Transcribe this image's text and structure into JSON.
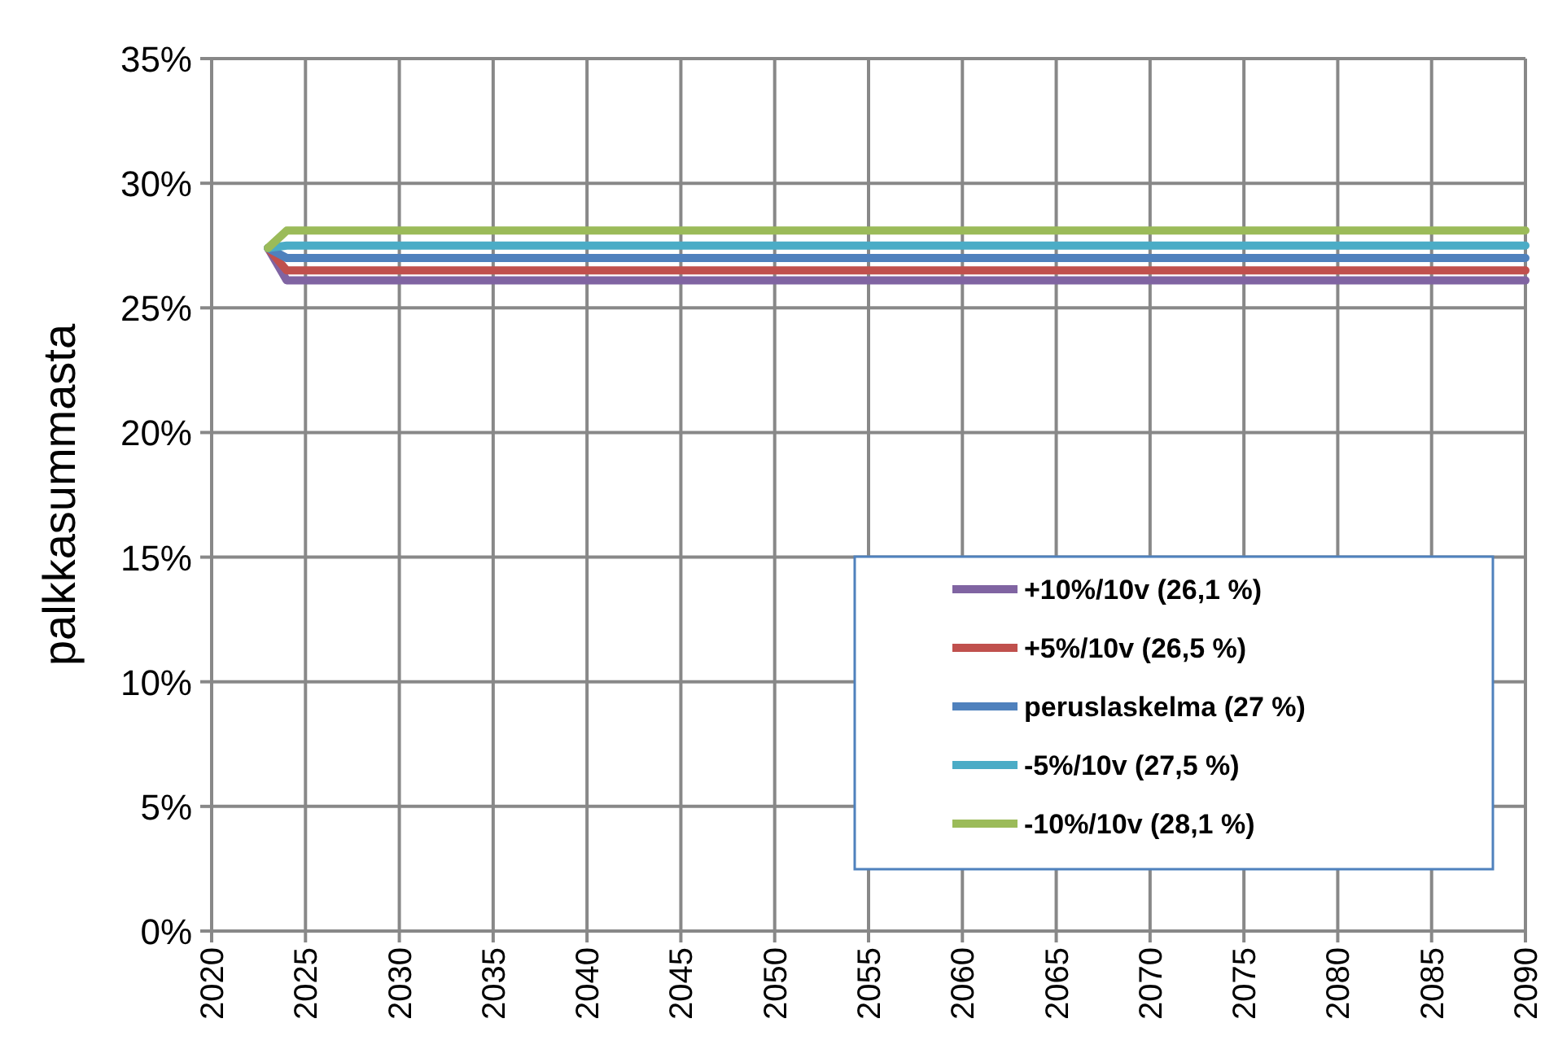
{
  "chart_data": {
    "type": "line",
    "ylabel": "palkkasummasta",
    "x": [
      2023,
      2024,
      2090
    ],
    "series": [
      {
        "name": "+10%/10v (26,1 %)",
        "color": "#8064a2",
        "values": [
          27.4,
          26.1,
          26.1
        ]
      },
      {
        "name": "+5%/10v (26,5 %)",
        "color": "#c0504d",
        "values": [
          27.4,
          26.5,
          26.5
        ]
      },
      {
        "name": "peruslaskelma (27 %)",
        "color": "#4f81bd",
        "values": [
          27.4,
          27,
          27
        ]
      },
      {
        "name": "-5%/10v (27,5 %)",
        "color": "#4bacc6",
        "values": [
          27.4,
          27.5,
          27.5
        ]
      },
      {
        "name": "-10%/10v (28,1 %)",
        "color": "#9bbb59",
        "values": [
          27.4,
          28.1,
          28.1
        ]
      }
    ],
    "xlim": [
      2020,
      2090
    ],
    "xticks": [
      2020,
      2025,
      2030,
      2035,
      2040,
      2045,
      2050,
      2055,
      2060,
      2065,
      2070,
      2075,
      2080,
      2085,
      2090
    ],
    "ylim": [
      0,
      35
    ],
    "yticks": [
      {
        "value": 0,
        "label": "0%"
      },
      {
        "value": 5,
        "label": "5%"
      },
      {
        "value": 10,
        "label": "10%"
      },
      {
        "value": 15,
        "label": "15%"
      },
      {
        "value": 20,
        "label": "20%"
      },
      {
        "value": 25,
        "label": "25%"
      },
      {
        "value": 30,
        "label": "30%"
      },
      {
        "value": 35,
        "label": "35%"
      }
    ],
    "grid": true,
    "legend": "bottom right",
    "line_style": "solid"
  }
}
